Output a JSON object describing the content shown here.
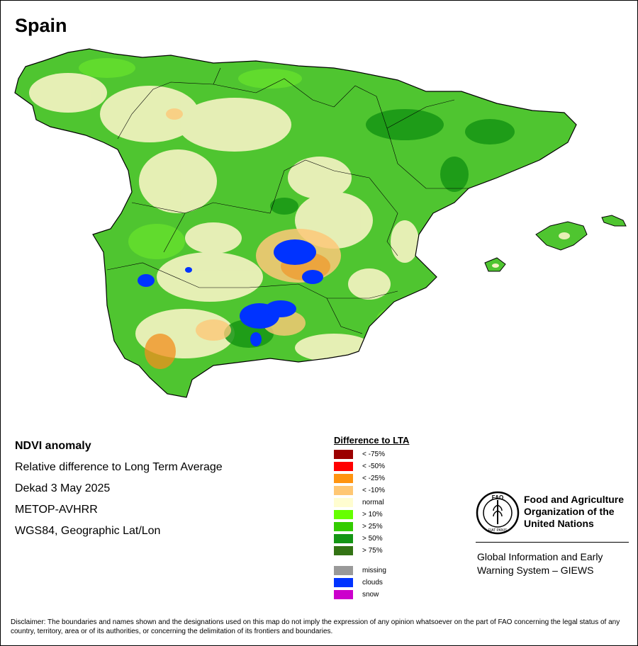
{
  "map": {
    "title": "Spain",
    "colors": {
      "normal": "#f6f3c4",
      "pos10": "#67e22c",
      "pos25": "#3fbb1f",
      "pos50": "#169514",
      "neg10": "#fdc879",
      "neg25": "#f28d1e",
      "clouds": "#0033ff",
      "border": "#000000"
    }
  },
  "info": {
    "indicator": "NDVI anomaly",
    "description": "Relative difference to Long Term Average",
    "period": "Dekad 3 May 2025",
    "sensor": "METOP-AVHRR",
    "projection": "WGS84, Geographic Lat/Lon"
  },
  "legend": {
    "title": "Difference to LTA",
    "classes": [
      {
        "label": "< -75%",
        "color": "#9b0000"
      },
      {
        "label": "< -50%",
        "color": "#ff0000"
      },
      {
        "label": "< -25%",
        "color": "#ff9410"
      },
      {
        "label": "< -10%",
        "color": "#ffc773"
      },
      {
        "label": "normal",
        "color": "#fffdd0"
      },
      {
        "label": "> 10%",
        "color": "#66ff00"
      },
      {
        "label": "> 25%",
        "color": "#33cc00"
      },
      {
        "label": "> 50%",
        "color": "#149614"
      },
      {
        "label": "> 75%",
        "color": "#337314"
      }
    ],
    "extra": [
      {
        "label": "missing",
        "color": "#999999"
      },
      {
        "label": "clouds",
        "color": "#0033ff"
      },
      {
        "label": "snow",
        "color": "#cc00cc"
      }
    ]
  },
  "fao": {
    "logo_text": "FAO",
    "logo_motto": "FIAT PANIS",
    "org_line1": "Food and Agriculture",
    "org_line2": "Organization of the",
    "org_line3": "United Nations",
    "giews_line1": "Global Information and Early",
    "giews_line2": "Warning System – GIEWS"
  },
  "disclaimer": "Disclaimer: The boundaries and names shown and the designations used on this map do not imply the expression of any opinion whatsoever on the part of FAO concerning the legal status of any country, territory, area or of its authorities, or concerning the delimitation of its frontiers and boundaries."
}
